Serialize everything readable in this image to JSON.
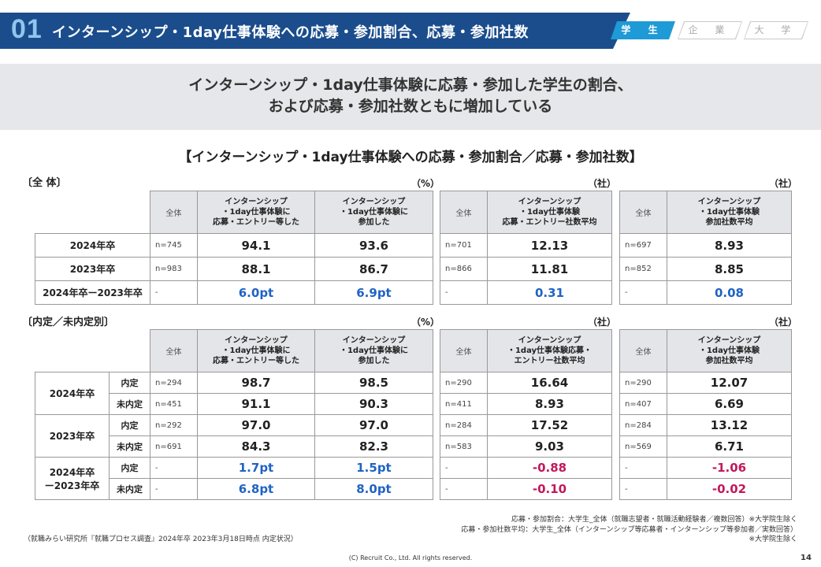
{
  "header": {
    "number": "01",
    "title": "インターンシップ・1day仕事体験への応募・参加割合、応募・参加社数"
  },
  "tabs": [
    "学 生",
    "企 業",
    "大 学"
  ],
  "banner": {
    "line1": "インターンシップ・1day仕事体験に応募・参加した学生の割合、",
    "line2": "および応募・参加社数ともに増加している"
  },
  "section_title": "【インターンシップ・1day仕事体験への応募・参加割合／応募・参加社数】",
  "overall": {
    "label": "〔全 体〕",
    "units": [
      "（%）",
      "（社）",
      "（社）"
    ],
    "headers": {
      "all": "全体",
      "pct_apply": [
        "インターンシップ",
        "・1day仕事体験に",
        "応募・エントリー等した"
      ],
      "pct_join": [
        "インターンシップ",
        "・1day仕事体験に",
        "参加した"
      ],
      "cnt_apply": [
        "インターンシップ",
        "・1day仕事体験",
        "応募・エントリー社数平均"
      ],
      "cnt_join": [
        "インターンシップ",
        "・1day仕事体験",
        "参加社数平均"
      ]
    },
    "rows": [
      {
        "label": "2024年卒",
        "n1": "n=745",
        "v1": "94.1",
        "v2": "93.6",
        "n2": "n=701",
        "v3": "12.13",
        "n3": "n=697",
        "v4": "8.93"
      },
      {
        "label": "2023年卒",
        "n1": "n=983",
        "v1": "88.1",
        "v2": "86.7",
        "n2": "n=866",
        "v3": "11.81",
        "n3": "n=852",
        "v4": "8.85"
      },
      {
        "label": "2024年卒ー2023年卒",
        "n1": "-",
        "v1": "6.0pt",
        "v2": "6.9pt",
        "n2": "-",
        "v3": "0.31",
        "n3": "-",
        "v4": "0.08"
      }
    ]
  },
  "by_status": {
    "label": "〔内定／未内定別〕",
    "units": [
      "（%）",
      "（社）",
      "（社）"
    ],
    "headers": {
      "all": "全体",
      "pct_apply": [
        "インターンシップ",
        "・1day仕事体験に",
        "応募・エントリー等した"
      ],
      "pct_join": [
        "インターンシップ",
        "・1day仕事体験に",
        "参加した"
      ],
      "cnt_apply": [
        "インターンシップ",
        "・1day仕事体験応募・",
        "エントリー社数平均"
      ],
      "cnt_join": [
        "インターンシップ",
        "・1day仕事体験",
        "参加社数平均"
      ]
    },
    "groups": [
      {
        "label": "2024年卒",
        "rows": [
          {
            "status": "内定",
            "n1": "n=294",
            "v1": "98.7",
            "v2": "98.5",
            "n2": "n=290",
            "v3": "16.64",
            "n3": "n=290",
            "v4": "12.07"
          },
          {
            "status": "未内定",
            "n1": "n=451",
            "v1": "91.1",
            "v2": "90.3",
            "n2": "n=411",
            "v3": "8.93",
            "n3": "n=407",
            "v4": "6.69"
          }
        ]
      },
      {
        "label": "2023年卒",
        "rows": [
          {
            "status": "内定",
            "n1": "n=292",
            "v1": "97.0",
            "v2": "97.0",
            "n2": "n=284",
            "v3": "17.52",
            "n3": "n=284",
            "v4": "13.12"
          },
          {
            "status": "未内定",
            "n1": "n=691",
            "v1": "84.3",
            "v2": "82.3",
            "n2": "n=583",
            "v3": "9.03",
            "n3": "n=569",
            "v4": "6.71"
          }
        ]
      },
      {
        "label_line1": "2024年卒",
        "label_line2": "ー2023年卒",
        "rows": [
          {
            "status": "内定",
            "n1": "-",
            "v1": "1.7pt",
            "v2": "1.5pt",
            "n2": "-",
            "v3": "-0.88",
            "n3": "-",
            "v4": "-1.06"
          },
          {
            "status": "未内定",
            "n1": "-",
            "v1": "6.8pt",
            "v2": "8.0pt",
            "n2": "-",
            "v3": "-0.10",
            "n3": "-",
            "v4": "-0.02"
          }
        ]
      }
    ]
  },
  "colors": {
    "positive": "#1f63c4",
    "negative": "#c2185b",
    "header_bg": "#1b4d8c",
    "tab_active": "#1e9ad6"
  },
  "footnotes": {
    "note1": "応募・参加割合：大学生_全体（就職志望者・就職活動経験者／複数回答）※大学院生除く",
    "note2": "応募・参加社数平均：大学生_全体（インターンシップ等応募者・インターンシップ等参加者／実数回答）",
    "note3": "※大学院生除く",
    "source": "（就職みらい研究所『就職プロセス調査』2024年卒 2023年3月18日時点 内定状況）",
    "copyright": "(C) Recruit Co., Ltd. All rights reserved.",
    "page": "14"
  }
}
